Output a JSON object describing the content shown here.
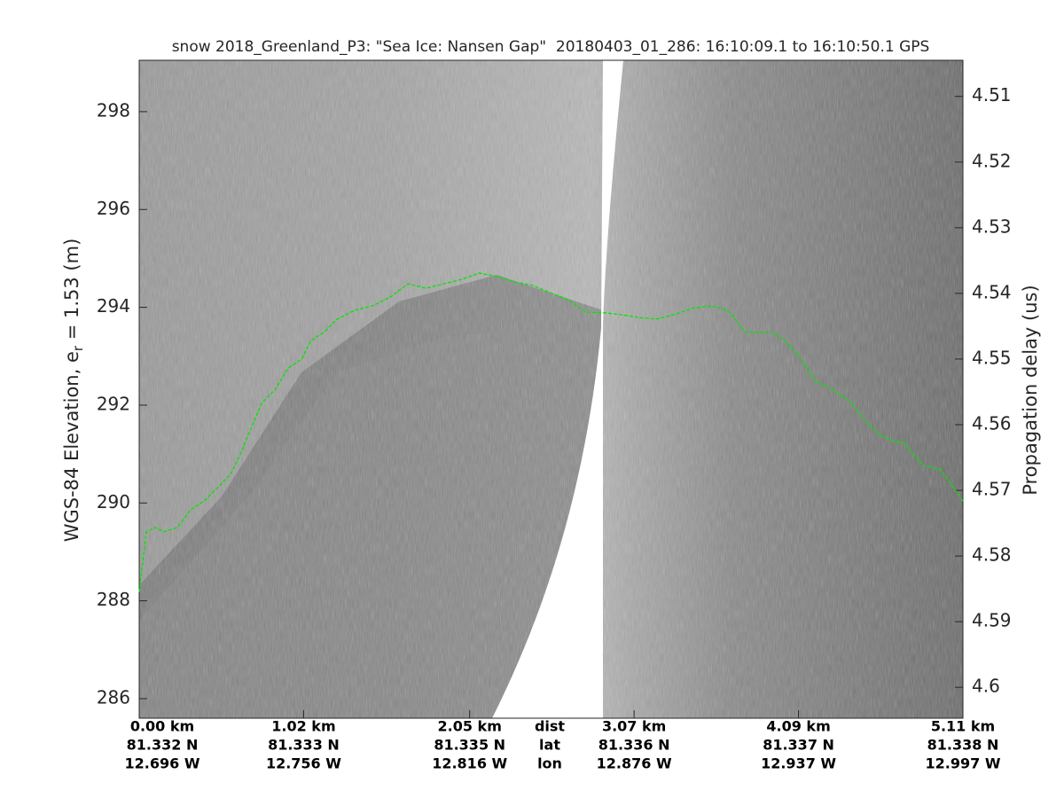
{
  "chart_data": {
    "type": "line",
    "title": "snow 2018_Greenland_P3: \"Sea Ice: Nansen Gap\"  20180403_01_286: 16:10:09.1 to 16:10:50.1 GPS",
    "ylabel": {
      "text": "WGS-84 Elevation, e",
      "subscript": "r",
      "suffix": " = 1.53 (m)"
    },
    "y2label": "Propagation delay (us)",
    "x_row_labels": [
      "dist",
      "lat",
      "lon"
    ],
    "xlim": [
      0,
      5.11
    ],
    "xticks": [
      {
        "value": 0,
        "label": "0.00 km"
      },
      {
        "value": 1.02,
        "label": "1.02 km"
      },
      {
        "value": 2.05,
        "label": "2.05 km"
      },
      {
        "value": 3.07,
        "label": "3.07 km"
      },
      {
        "value": 4.09,
        "label": "4.09 km"
      },
      {
        "value": 5.11,
        "label": "5.11 km"
      }
    ],
    "lat_labels": [
      "81.332 N",
      "81.333 N",
      "81.335 N",
      "81.336 N",
      "81.337 N",
      "81.338 N"
    ],
    "lon_labels": [
      "12.696 W",
      "12.756 W",
      "12.816 W",
      "12.876 W",
      "12.937 W",
      "12.997 W"
    ],
    "ylim": [
      285.6,
      299.05
    ],
    "yticks": [
      286,
      288,
      290,
      292,
      294,
      296,
      298
    ],
    "y2lim": [
      4.6047,
      4.5045
    ],
    "y2ticks": [
      4.51,
      4.52,
      4.53,
      4.54,
      4.55,
      4.56,
      4.57,
      4.58,
      4.59,
      4.6
    ],
    "color": "#00e600",
    "dashed": true,
    "x": [
      0,
      0.044,
      0.099,
      0.154,
      0.237,
      0.319,
      0.402,
      0.485,
      0.567,
      0.622,
      0.677,
      0.76,
      0.842,
      0.925,
      1.008,
      1.063,
      1.145,
      1.228,
      1.338,
      1.448,
      1.558,
      1.668,
      1.779,
      1.889,
      1.999,
      2.109,
      2.219,
      2.329,
      2.439,
      2.55,
      2.66,
      2.77,
      2.88,
      2.99,
      3.1,
      3.21,
      3.32,
      3.431,
      3.541,
      3.651,
      3.761,
      3.926,
      4.009,
      4.086,
      4.196,
      4.306,
      4.417,
      4.532,
      4.637,
      4.747,
      4.862,
      4.972,
      5.11
    ],
    "values": [
      288.18,
      289.41,
      289.5,
      289.41,
      289.5,
      289.86,
      290.04,
      290.31,
      290.59,
      290.95,
      291.4,
      292.04,
      292.31,
      292.76,
      292.94,
      293.31,
      293.49,
      293.76,
      293.94,
      294.03,
      294.21,
      294.48,
      294.39,
      294.48,
      294.57,
      294.7,
      294.63,
      294.52,
      294.45,
      294.3,
      294.16,
      293.9,
      293.89,
      293.85,
      293.79,
      293.76,
      293.85,
      293.98,
      294.03,
      293.94,
      293.49,
      293.49,
      293.31,
      293.03,
      292.49,
      292.31,
      292.04,
      291.58,
      291.31,
      291.22,
      290.77,
      290.68,
      290.04
    ]
  }
}
